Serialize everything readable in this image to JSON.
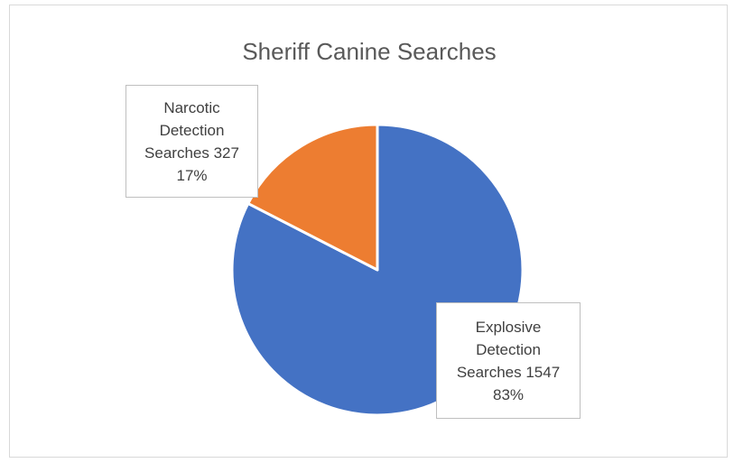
{
  "chart_data": {
    "type": "pie",
    "title": "Sheriff Canine Searches",
    "slices": [
      {
        "label_lines": [
          "Explosive",
          "Detection",
          "Searches 1547",
          "83%"
        ],
        "value": 1547,
        "percent": 83,
        "color": "#4472c4"
      },
      {
        "label_lines": [
          "Narcotic",
          "Detection",
          "Searches 327",
          "17%"
        ],
        "value": 327,
        "percent": 17,
        "color": "#ed7d31"
      }
    ],
    "start_angle": "12 o'clock",
    "direction": "clockwise",
    "legend": "none"
  }
}
